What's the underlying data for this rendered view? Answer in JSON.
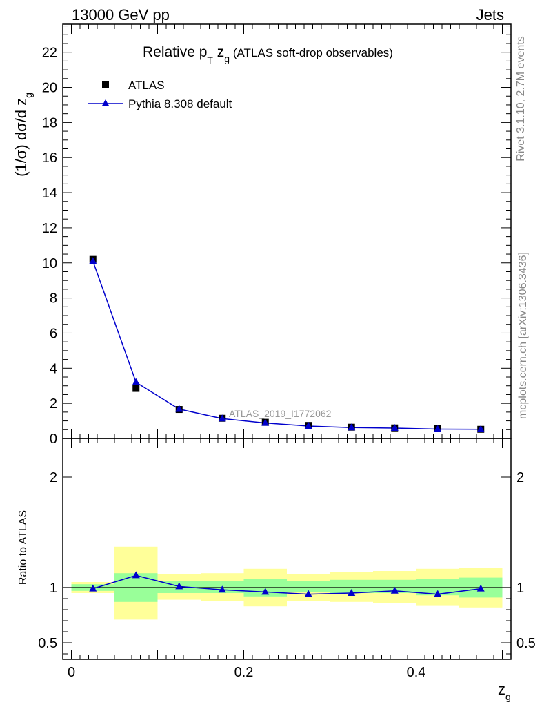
{
  "header": {
    "left": "13000 GeV pp",
    "right": "Jets"
  },
  "side_labels": {
    "rivet": "Rivet 3.1.10,  2.7M events",
    "mcplots": "mcplots.cern.ch [arXiv:1306.3436]"
  },
  "chart_data": [
    {
      "type": "scatter",
      "title": {
        "main": "Relative p",
        "sub1": "T",
        "mid": " z",
        "sub2": "g",
        "rest": " (ATLAS soft-drop observables)"
      },
      "ylabel": {
        "main": "(1/σ) dσ/d z",
        "sub": "g"
      },
      "watermark": "ATLAS_2019_I1772062",
      "xlim": [
        -0.01,
        0.51
      ],
      "ylim": [
        0,
        23.6
      ],
      "yticks": [
        {
          "v": 0,
          "label": "0"
        },
        {
          "v": 2,
          "label": "2"
        },
        {
          "v": 4,
          "label": "4"
        },
        {
          "v": 6,
          "label": "6"
        },
        {
          "v": 8,
          "label": "8"
        },
        {
          "v": 10,
          "label": "10"
        },
        {
          "v": 12,
          "label": "12"
        },
        {
          "v": 14,
          "label": "14"
        },
        {
          "v": 16,
          "label": "16"
        },
        {
          "v": 18,
          "label": "18"
        },
        {
          "v": 20,
          "label": "20"
        },
        {
          "v": 22,
          "label": "22"
        }
      ],
      "legend_position": "top-left",
      "series": [
        {
          "name": "ATLAS",
          "style": "square-markers",
          "color": "#000000",
          "x": [
            0.025,
            0.075,
            0.125,
            0.175,
            0.225,
            0.275,
            0.325,
            0.375,
            0.425,
            0.475
          ],
          "y": [
            10.2,
            2.85,
            1.65,
            1.15,
            0.92,
            0.74,
            0.64,
            0.6,
            0.56,
            0.52
          ]
        },
        {
          "name": "Pythia 8.308 default",
          "style": "line-triangle",
          "color": "#0000cc",
          "x": [
            0.025,
            0.075,
            0.125,
            0.175,
            0.225,
            0.275,
            0.325,
            0.375,
            0.425,
            0.475
          ],
          "y": [
            10.1,
            3.2,
            1.67,
            1.13,
            0.88,
            0.71,
            0.62,
            0.59,
            0.53,
            0.52
          ]
        }
      ]
    },
    {
      "type": "scatter",
      "ylabel": "Ratio to ATLAS",
      "xlabel": {
        "main": "z",
        "sub": "g"
      },
      "xlim": [
        -0.01,
        0.51
      ],
      "ylim": [
        0.35,
        2.35
      ],
      "xticks": [
        {
          "v": 0,
          "label": "0"
        },
        {
          "v": 0.2,
          "label": "0.2"
        },
        {
          "v": 0.4,
          "label": "0.4"
        }
      ],
      "yticks": [
        {
          "v": 0.5,
          "label": "0.5"
        },
        {
          "v": 1,
          "label": "1"
        },
        {
          "v": 2,
          "label": "2"
        }
      ],
      "reference_line": 1,
      "bin_edges": [
        0,
        0.05,
        0.1,
        0.15,
        0.2,
        0.25,
        0.3,
        0.35,
        0.4,
        0.45,
        0.5
      ],
      "band_inner": {
        "color": "#99ff99",
        "lo": [
          0.97,
          0.87,
          0.95,
          0.95,
          0.92,
          0.96,
          0.95,
          0.95,
          0.93,
          0.91
        ],
        "hi": [
          1.03,
          1.13,
          1.06,
          1.06,
          1.08,
          1.06,
          1.07,
          1.07,
          1.08,
          1.09
        ]
      },
      "band_outer": {
        "color": "#ffff99",
        "lo": [
          0.95,
          0.71,
          0.89,
          0.88,
          0.83,
          0.88,
          0.87,
          0.86,
          0.84,
          0.82
        ],
        "hi": [
          1.05,
          1.37,
          1.12,
          1.13,
          1.17,
          1.12,
          1.14,
          1.15,
          1.17,
          1.18
        ]
      },
      "series": [
        {
          "name": "Pythia 8.308 default",
          "style": "line-triangle",
          "color": "#0000cc",
          "x": [
            0.025,
            0.075,
            0.125,
            0.175,
            0.225,
            0.275,
            0.325,
            0.375,
            0.425,
            0.475
          ],
          "y": [
            0.99,
            1.11,
            1.01,
            0.98,
            0.96,
            0.94,
            0.95,
            0.97,
            0.94,
            0.99
          ],
          "err": [
            0,
            0,
            0,
            0,
            0,
            0,
            0,
            0,
            0.015,
            0.02
          ]
        }
      ]
    }
  ]
}
